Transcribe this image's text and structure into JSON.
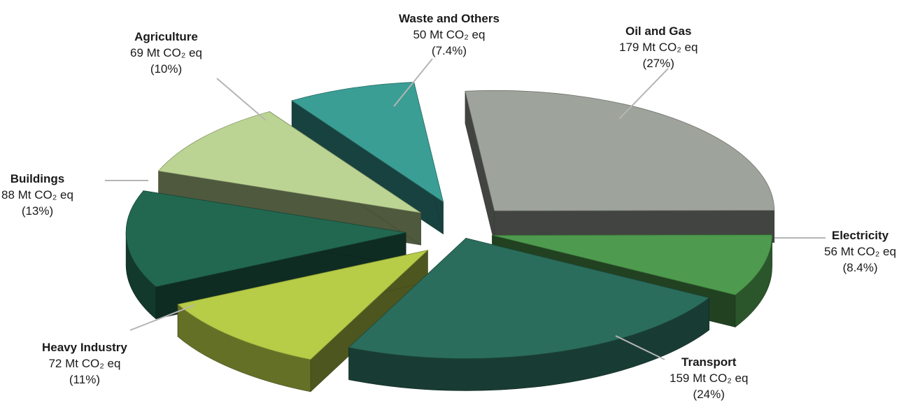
{
  "chart_data": {
    "type": "pie",
    "style": "3d-exploded",
    "unit": "Mt CO₂ eq",
    "slices": [
      {
        "key": "oil",
        "name": "Oil and Gas",
        "value_text": "179 Mt CO₂ eq",
        "percent_text": "(27%)",
        "value": 179,
        "percent": 27,
        "color": "#9ea39b"
      },
      {
        "key": "electricity",
        "name": "Electricity",
        "value_text": "56 Mt CO₂ eq",
        "percent_text": "(8.4%)",
        "value": 56,
        "percent": 8.4,
        "color": "#4e9a4e"
      },
      {
        "key": "transport",
        "name": "Transport",
        "value_text": "159 Mt CO₂ eq",
        "percent_text": "(24%)",
        "value": 159,
        "percent": 24,
        "color": "#2b6d5c"
      },
      {
        "key": "heavy",
        "name": "Heavy Industry",
        "value_text": "72 Mt CO₂ eq",
        "percent_text": "(11%)",
        "value": 72,
        "percent": 11,
        "color": "#b7cc47"
      },
      {
        "key": "buildings",
        "name": "Buildings",
        "value_text": "88 Mt CO₂ eq",
        "percent_text": "(13%)",
        "value": 88,
        "percent": 13,
        "color": "#226850"
      },
      {
        "key": "agriculture",
        "name": "Agriculture",
        "value_text": "69 Mt CO₂ eq",
        "percent_text": "(10%)",
        "value": 69,
        "percent": 10,
        "color": "#bcd493"
      },
      {
        "key": "waste",
        "name": "Waste and Others",
        "value_text": "50 Mt CO₂ eq",
        "percent_text": "(7.4%)",
        "value": 50,
        "percent": 7.4,
        "color": "#3a9e95"
      }
    ]
  }
}
